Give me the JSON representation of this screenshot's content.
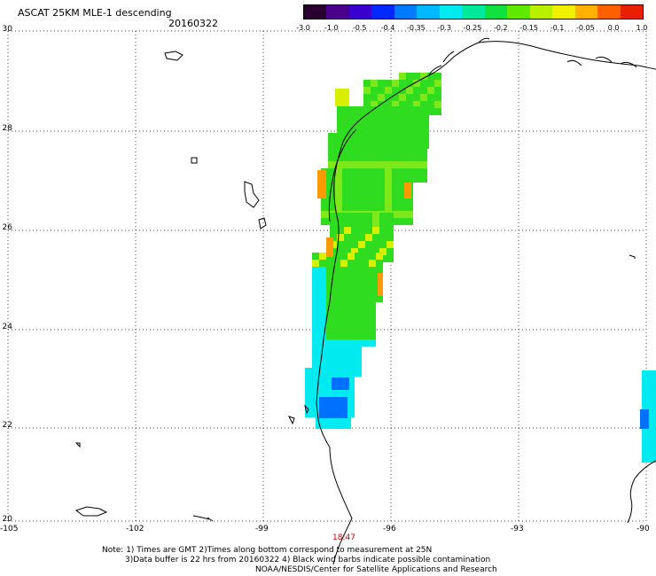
{
  "header": {
    "title": "ASCAT 25KM MLE-1 descending",
    "date": "20160322"
  },
  "colorbar": {
    "colors": [
      "#2a0030",
      "#4a008a",
      "#3a00d0",
      "#0028ff",
      "#007aff",
      "#00b8ff",
      "#00eaf0",
      "#00e89a",
      "#10e040",
      "#5fe800",
      "#b8f000",
      "#f0f000",
      "#ffb000",
      "#ff6000",
      "#e82000"
    ],
    "labels": [
      "-3.0",
      "-1.0",
      "-0.5",
      "-0.4",
      "-0.35",
      "-0.3",
      "-0.25",
      "-0.2",
      "-0.15",
      "-0.1",
      "-0.05",
      "0.0",
      "1.0"
    ]
  },
  "axes": {
    "lat_labels": [
      "30",
      "28",
      "26",
      "24",
      "22",
      "20"
    ],
    "lon_labels": [
      "-105",
      "-102",
      "-99",
      "-96",
      "-93",
      "-90"
    ]
  },
  "time_label": "18:47",
  "notes": {
    "line1": "Note: 1) Times are GMT 2)Times along bottom correspond to measurement at 25N",
    "line2": "3)Data buffer is 22 hrs from 20160322 4) Black wind barbs indicate possible contamination",
    "line3": "NOAA/NESDIS/Center for Satellite Applications and Research"
  },
  "swath_colors": {
    "green": "#30dc20",
    "lightgreen": "#7ee81a",
    "yellow": "#d8f000",
    "orange": "#ff9a00",
    "cyan": "#00eaf0",
    "blue": "#0070ff"
  }
}
